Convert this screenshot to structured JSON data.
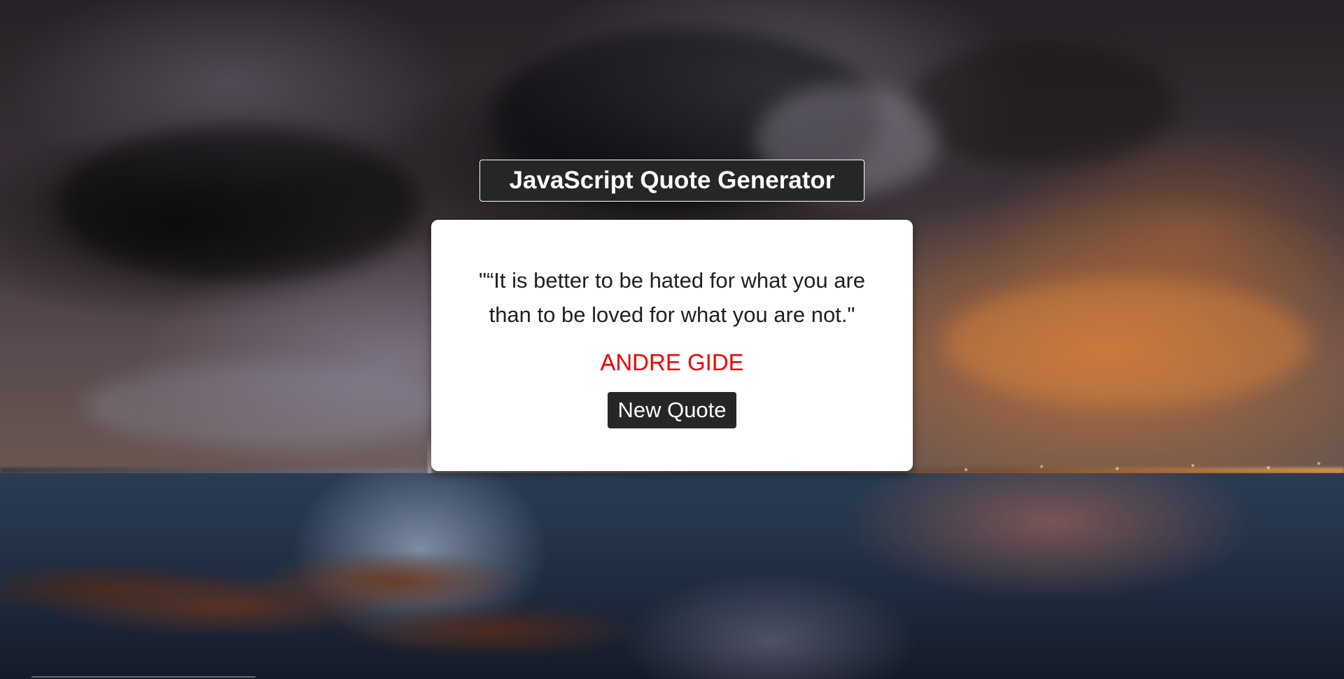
{
  "header": {
    "title": "JavaScript Quote Generator"
  },
  "quote": {
    "text": "\"“It is better to be hated for what you are than to be loved for what you are not.\"",
    "author": "ANDRE GIDE"
  },
  "actions": {
    "new_quote_label": "New Quote"
  },
  "colors": {
    "title_background": "#262626",
    "card_background": "#ffffff",
    "author_text": "#f20000",
    "button_background": "#262626",
    "button_text": "#ffffff"
  }
}
